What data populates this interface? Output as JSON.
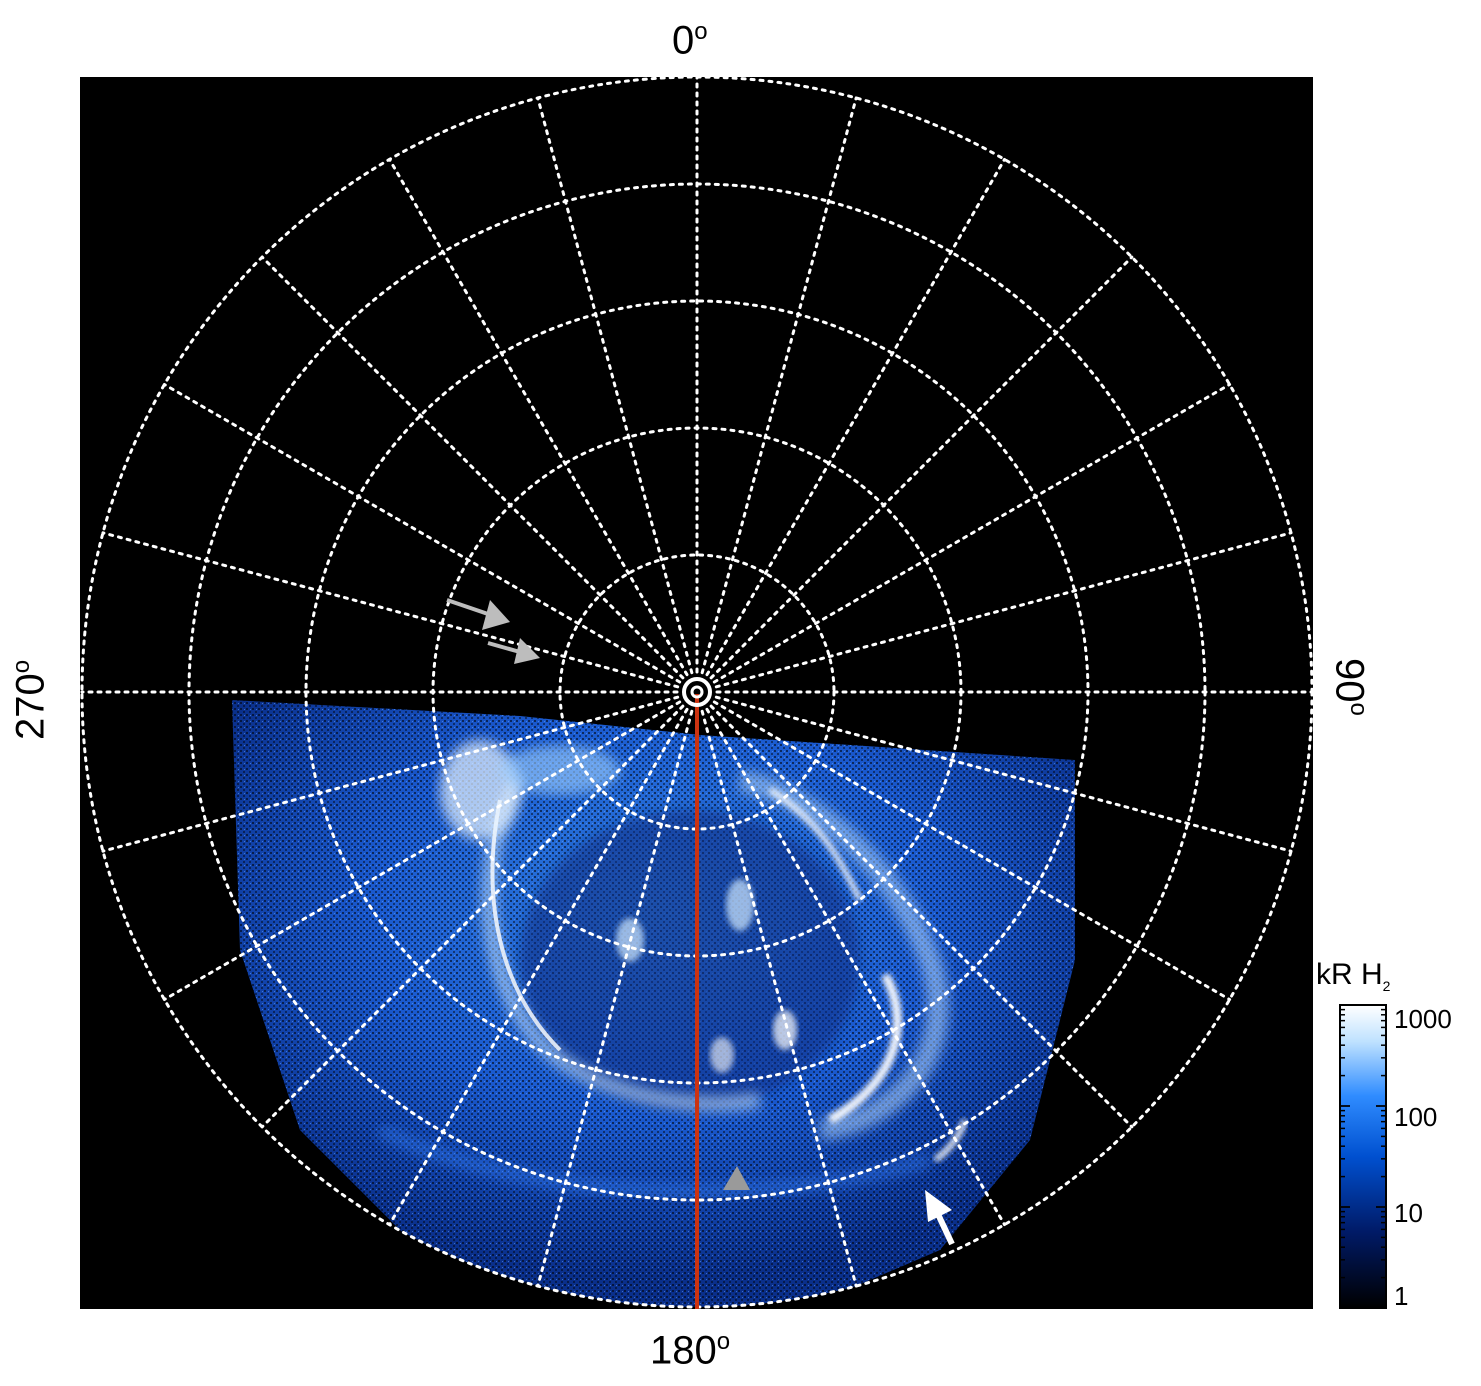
{
  "axis_labels": {
    "top": "0",
    "right": "90",
    "bottom": "180",
    "left": "270",
    "degree_symbol": "o"
  },
  "colorbar": {
    "title_main": "kR H",
    "title_sub": "2",
    "scale": "log",
    "ticks": [
      "1000",
      "100",
      "10",
      "1"
    ],
    "colors": [
      "#000000",
      "#001a66",
      "#0050d0",
      "#2f8cff",
      "#bfe2ff",
      "#ffffff"
    ]
  },
  "markers": {
    "meridian_line_color": "#cc3311",
    "grid_color": "#ffffff",
    "background": "#000000",
    "arrow_colors": [
      "#bdbdbd",
      "#ffffff"
    ]
  }
}
